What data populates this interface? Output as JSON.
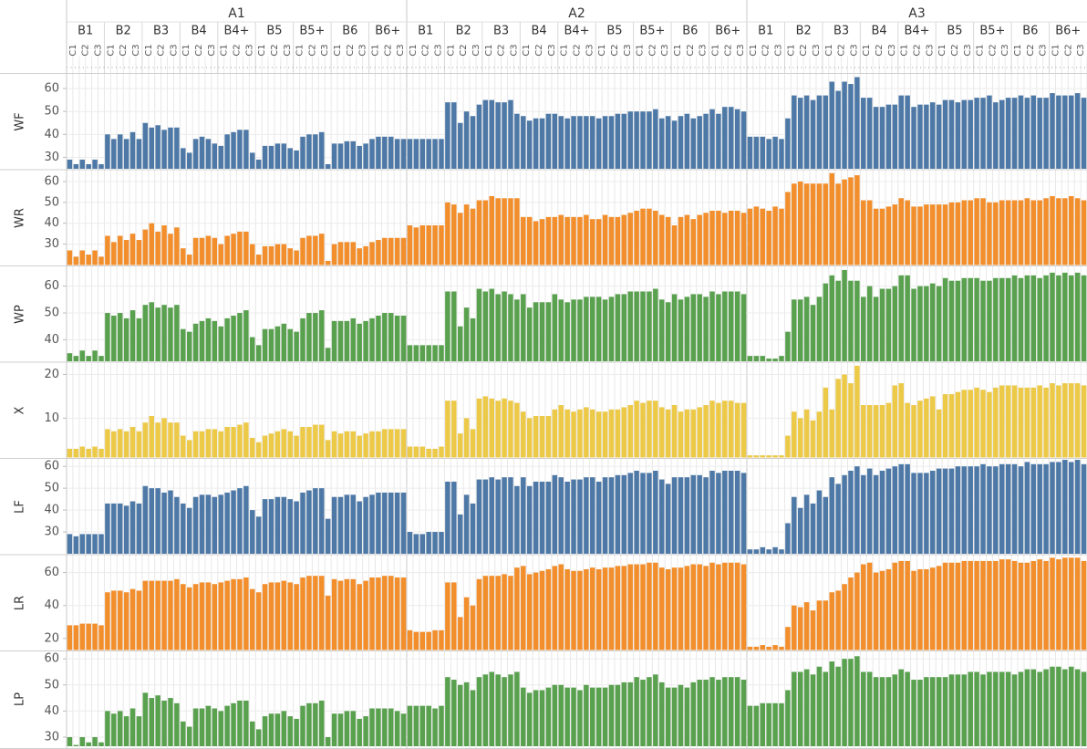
{
  "chart_data": {
    "type": "bar",
    "groups": [
      "A1",
      "A2",
      "A3"
    ],
    "subgroups": [
      "B1",
      "B2",
      "B3",
      "B4",
      "B4+",
      "B5",
      "B5+",
      "B6",
      "B6+"
    ],
    "subsubgroups": [
      "C1",
      "C2",
      "C3"
    ],
    "grid": true,
    "panels": [
      {
        "name": "WF",
        "color": "#4e79a7",
        "ylim": [
          25,
          66
        ],
        "yticks": [
          30,
          40,
          50,
          60
        ],
        "values": [
          29,
          27,
          29,
          27,
          29,
          27,
          40,
          38,
          40,
          38,
          41,
          38,
          45,
          43,
          44,
          42,
          43,
          43,
          34,
          32,
          38,
          39,
          38,
          36,
          35,
          40,
          41,
          42,
          42,
          32,
          29,
          35,
          35,
          36,
          36,
          34,
          33,
          39,
          40,
          40,
          41,
          27,
          36,
          36,
          37,
          37,
          35,
          36,
          38,
          39,
          39,
          39,
          38,
          38,
          38,
          38,
          38,
          38,
          38,
          38,
          54,
          54,
          45,
          50,
          48,
          53,
          55,
          55,
          54,
          54,
          55,
          49,
          48,
          46,
          47,
          47,
          49,
          49,
          48,
          47,
          48,
          48,
          48,
          48,
          47,
          48,
          48,
          49,
          49,
          50,
          50,
          50,
          50,
          51,
          47,
          48,
          46,
          48,
          49,
          47,
          48,
          49,
          51,
          49,
          52,
          52,
          51,
          50,
          39,
          39,
          39,
          38,
          39,
          38,
          47,
          57,
          56,
          57,
          55,
          57,
          57,
          63,
          59,
          63,
          62,
          65,
          56,
          56,
          52,
          52,
          53,
          53,
          57,
          57,
          52,
          53,
          53,
          54,
          53,
          55,
          55,
          54,
          55,
          55,
          56,
          56,
          57,
          54,
          55,
          56,
          56,
          57,
          56,
          57,
          56,
          56,
          58,
          57,
          57,
          57,
          58,
          56
        ]
      },
      {
        "name": "WR",
        "color": "#f28e2b",
        "ylim": [
          20,
          65
        ],
        "yticks": [
          30,
          40,
          50,
          60
        ],
        "values": [
          27,
          24,
          27,
          25,
          27,
          24,
          34,
          31,
          34,
          32,
          35,
          32,
          37,
          40,
          36,
          39,
          35,
          38,
          28,
          25,
          33,
          33,
          34,
          33,
          30,
          34,
          35,
          36,
          36,
          30,
          25,
          29,
          29,
          30,
          30,
          28,
          27,
          33,
          34,
          34,
          35,
          22,
          30,
          31,
          31,
          31,
          28,
          29,
          31,
          32,
          33,
          33,
          33,
          33,
          39,
          38,
          39,
          39,
          39,
          39,
          50,
          49,
          45,
          49,
          47,
          51,
          51,
          53,
          52,
          52,
          52,
          52,
          43,
          43,
          41,
          42,
          43,
          43,
          44,
          43,
          43,
          43,
          44,
          42,
          42,
          44,
          43,
          43,
          44,
          45,
          46,
          47,
          47,
          46,
          44,
          43,
          39,
          43,
          44,
          42,
          44,
          45,
          46,
          46,
          45,
          46,
          46,
          45,
          47,
          48,
          47,
          46,
          48,
          47,
          55,
          59,
          60,
          59,
          59,
          59,
          59,
          64,
          59,
          61,
          62,
          63,
          51,
          51,
          47,
          47,
          48,
          49,
          52,
          51,
          48,
          48,
          49,
          49,
          49,
          49,
          50,
          50,
          51,
          51,
          52,
          52,
          50,
          50,
          51,
          51,
          51,
          51,
          52,
          51,
          51,
          52,
          53,
          52,
          52,
          53,
          52,
          51
        ]
      },
      {
        "name": "WP",
        "color": "#59a14f",
        "ylim": [
          32,
          67
        ],
        "yticks": [
          40,
          50,
          60
        ],
        "values": [
          35,
          34,
          36,
          34,
          36,
          34,
          50,
          49,
          50,
          48,
          51,
          48,
          53,
          54,
          52,
          53,
          52,
          53,
          44,
          43,
          46,
          47,
          48,
          47,
          45,
          48,
          49,
          50,
          51,
          41,
          38,
          44,
          44,
          45,
          46,
          44,
          43,
          48,
          50,
          50,
          51,
          37,
          47,
          47,
          47,
          48,
          46,
          47,
          48,
          49,
          50,
          50,
          49,
          49,
          38,
          38,
          38,
          38,
          38,
          38,
          58,
          58,
          45,
          52,
          48,
          59,
          58,
          59,
          57,
          58,
          57,
          55,
          57,
          52,
          54,
          54,
          54,
          57,
          55,
          54,
          55,
          55,
          56,
          56,
          56,
          55,
          56,
          57,
          57,
          58,
          58,
          58,
          58,
          59,
          55,
          54,
          57,
          55,
          56,
          57,
          57,
          56,
          58,
          57,
          58,
          58,
          58,
          57,
          34,
          34,
          34,
          33,
          33,
          34,
          43,
          55,
          55,
          56,
          53,
          56,
          61,
          64,
          62,
          66,
          62,
          62,
          56,
          60,
          56,
          59,
          59,
          60,
          64,
          64,
          59,
          60,
          60,
          61,
          60,
          63,
          62,
          62,
          63,
          63,
          63,
          62,
          62,
          63,
          63,
          63,
          64,
          63,
          64,
          64,
          63,
          64,
          65,
          64,
          65,
          64,
          65,
          64
        ]
      },
      {
        "name": "X",
        "color": "#edc948",
        "ylim": [
          1,
          22.5
        ],
        "yticks": [
          10,
          20
        ],
        "values": [
          3,
          3,
          3.5,
          3,
          3.5,
          3,
          7.5,
          7,
          7.5,
          7,
          8,
          7,
          9,
          10.5,
          9,
          10,
          9,
          9,
          6,
          5,
          7,
          7,
          7.5,
          7.5,
          7,
          8,
          8,
          8.5,
          9,
          5.5,
          4.5,
          6,
          6.5,
          7,
          7.5,
          7,
          6,
          8,
          8,
          8.5,
          8.5,
          5,
          7,
          6.5,
          7,
          7,
          6,
          6.5,
          7,
          7,
          7.5,
          7.5,
          7.5,
          7.5,
          3.5,
          3.5,
          3.5,
          3,
          3,
          3.5,
          14,
          14,
          6.5,
          10,
          7.5,
          14.5,
          15,
          14.5,
          14,
          14.5,
          14,
          13.5,
          11.5,
          10,
          10.5,
          10.5,
          10.5,
          12,
          13,
          12,
          11.5,
          12,
          12.5,
          12,
          11.5,
          11.5,
          12,
          12,
          12.5,
          13,
          14,
          13.5,
          14,
          14,
          12.5,
          12,
          13,
          11.5,
          12,
          12,
          12.5,
          13,
          14,
          13.5,
          14,
          14,
          13.5,
          13.5,
          1.5,
          1.5,
          1.5,
          1.5,
          1.5,
          1.5,
          6,
          11.5,
          10,
          12,
          9.5,
          11.5,
          17,
          12,
          19,
          20,
          18,
          22,
          13,
          13,
          13,
          13,
          13.5,
          17.5,
          18,
          13.5,
          13,
          14,
          14.5,
          15,
          12,
          15.5,
          15.5,
          16,
          16.5,
          16.5,
          17,
          16.5,
          16,
          17,
          17.5,
          17.5,
          17.5,
          17,
          17,
          17,
          17.5,
          17,
          18,
          17.5,
          18,
          18,
          18,
          17.5
        ]
      },
      {
        "name": "LF",
        "color": "#4e79a7",
        "ylim": [
          20,
          63
        ],
        "yticks": [
          30,
          40,
          50,
          60
        ],
        "values": [
          29,
          28,
          29,
          29,
          29,
          29,
          43,
          43,
          43,
          42,
          44,
          43,
          51,
          50,
          50,
          48,
          49,
          46,
          43,
          41,
          46,
          47,
          47,
          46,
          47,
          48,
          49,
          50,
          51,
          40,
          37,
          45,
          45,
          46,
          46,
          45,
          44,
          48,
          49,
          50,
          50,
          36,
          46,
          46,
          47,
          47,
          44,
          46,
          47,
          48,
          48,
          48,
          48,
          48,
          30,
          29,
          29,
          30,
          30,
          30,
          53,
          53,
          38,
          47,
          43,
          54,
          54,
          55,
          54,
          55,
          55,
          51,
          55,
          51,
          53,
          53,
          53,
          56,
          55,
          53,
          54,
          54,
          55,
          55,
          53,
          55,
          55,
          56,
          56,
          57,
          58,
          57,
          57,
          58,
          54,
          52,
          55,
          55,
          55,
          56,
          56,
          55,
          58,
          57,
          58,
          58,
          58,
          57,
          22,
          22,
          23,
          22,
          23,
          22,
          34,
          46,
          41,
          47,
          43,
          49,
          46,
          55,
          52,
          56,
          58,
          60,
          56,
          59,
          56,
          58,
          59,
          60,
          61,
          61,
          57,
          57,
          57,
          58,
          59,
          59,
          59,
          60,
          60,
          60,
          60,
          61,
          60,
          60,
          61,
          61,
          61,
          60,
          62,
          61,
          61,
          61,
          62,
          62,
          63,
          62,
          63,
          61
        ]
      },
      {
        "name": "LR",
        "color": "#f28e2b",
        "ylim": [
          13,
          70
        ],
        "yticks": [
          20,
          40,
          60
        ],
        "values": [
          28,
          28,
          29,
          29,
          29,
          28,
          48,
          49,
          49,
          48,
          50,
          49,
          55,
          55,
          55,
          55,
          55,
          56,
          53,
          51,
          53,
          54,
          54,
          53,
          54,
          55,
          56,
          56,
          57,
          50,
          48,
          53,
          54,
          54,
          55,
          54,
          53,
          57,
          58,
          58,
          58,
          46,
          56,
          55,
          56,
          56,
          53,
          55,
          57,
          57,
          58,
          58,
          57,
          57,
          25,
          24,
          24,
          24,
          25,
          25,
          54,
          54,
          33,
          45,
          40,
          56,
          58,
          58,
          58,
          59,
          58,
          63,
          64,
          59,
          60,
          61,
          62,
          64,
          65,
          62,
          61,
          61,
          62,
          63,
          62,
          63,
          63,
          64,
          64,
          65,
          65,
          65,
          66,
          66,
          63,
          62,
          63,
          63,
          64,
          65,
          65,
          64,
          66,
          65,
          66,
          66,
          66,
          65,
          15,
          15,
          16,
          15,
          16,
          15,
          27,
          40,
          39,
          42,
          37,
          43,
          43,
          48,
          49,
          53,
          57,
          60,
          65,
          66,
          60,
          61,
          62,
          66,
          67,
          67,
          61,
          62,
          62,
          63,
          64,
          66,
          66,
          66,
          67,
          67,
          67,
          67,
          67,
          67,
          68,
          68,
          67,
          66,
          66,
          67,
          68,
          67,
          69,
          68,
          69,
          69,
          69,
          67
        ]
      },
      {
        "name": "LP",
        "color": "#59a14f",
        "ylim": [
          26.5,
          62.5
        ],
        "yticks": [
          30,
          40,
          50,
          60
        ],
        "values": [
          30,
          27,
          30,
          28,
          30,
          28,
          40,
          39,
          40,
          38,
          41,
          38,
          47,
          45,
          46,
          44,
          45,
          43,
          36,
          34,
          41,
          41,
          42,
          41,
          40,
          42,
          43,
          44,
          44,
          36,
          33,
          38,
          39,
          39,
          40,
          38,
          37,
          42,
          43,
          43,
          44,
          30,
          39,
          39,
          40,
          40,
          37,
          38,
          41,
          41,
          41,
          41,
          40,
          39,
          42,
          42,
          42,
          42,
          41,
          42,
          53,
          52,
          50,
          51,
          48,
          53,
          54,
          55,
          54,
          53,
          54,
          55,
          49,
          47,
          48,
          48,
          49,
          50,
          50,
          49,
          49,
          48,
          50,
          49,
          49,
          49,
          50,
          50,
          51,
          51,
          53,
          52,
          53,
          54,
          51,
          49,
          49,
          50,
          49,
          51,
          52,
          52,
          53,
          52,
          53,
          53,
          53,
          52,
          42,
          42,
          43,
          43,
          43,
          43,
          48,
          55,
          55,
          56,
          54,
          57,
          55,
          59,
          57,
          60,
          60,
          61,
          55,
          55,
          53,
          53,
          53,
          54,
          56,
          55,
          52,
          52,
          53,
          53,
          53,
          53,
          54,
          54,
          54,
          55,
          55,
          54,
          55,
          55,
          55,
          55,
          54,
          55,
          56,
          56,
          55,
          56,
          57,
          57,
          56,
          57,
          56,
          55
        ]
      }
    ]
  }
}
